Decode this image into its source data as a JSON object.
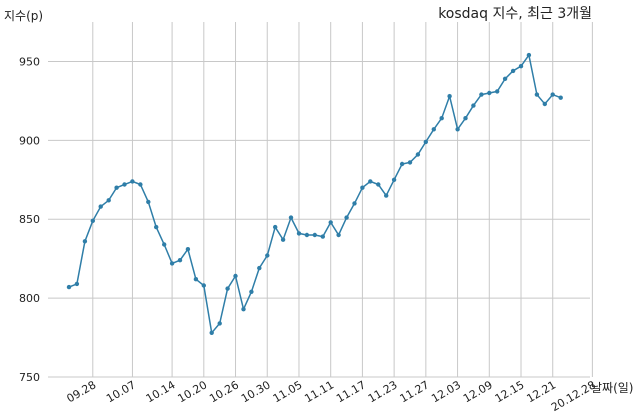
{
  "chart_data": {
    "type": "line",
    "title": "kosdaq 지수, 최근 3개월",
    "xlabel": "날짜(일)",
    "ylabel": "지수(p)",
    "ylim": [
      750,
      975
    ],
    "yticks": [
      750,
      800,
      850,
      900,
      950
    ],
    "grid": true,
    "xtick_labels": [
      "09.28",
      "10.07",
      "10.14",
      "10.20",
      "10.26",
      "10.30",
      "11.05",
      "11.11",
      "11.17",
      "11.23",
      "11.27",
      "12.03",
      "12.09",
      "12.15",
      "12.21",
      "20.12.28"
    ],
    "xtick_index": [
      3,
      8,
      13,
      17,
      21,
      25,
      29,
      33,
      37,
      41,
      45,
      49,
      53,
      57,
      61,
      66
    ],
    "series": [
      {
        "values": [
          807,
          809,
          836,
          849,
          858,
          862,
          870,
          872,
          874,
          872,
          861,
          845,
          834,
          822,
          824,
          831,
          812,
          808,
          778,
          784,
          806,
          814,
          793,
          804,
          819,
          827,
          845,
          837,
          851,
          841,
          840,
          840,
          839,
          848,
          840,
          851,
          860,
          870,
          874,
          872,
          865,
          875,
          885,
          886,
          891,
          899,
          907,
          914,
          928,
          907,
          914,
          922,
          929,
          930,
          931,
          939,
          944,
          947,
          954,
          929,
          923,
          929,
          927
        ]
      }
    ]
  }
}
